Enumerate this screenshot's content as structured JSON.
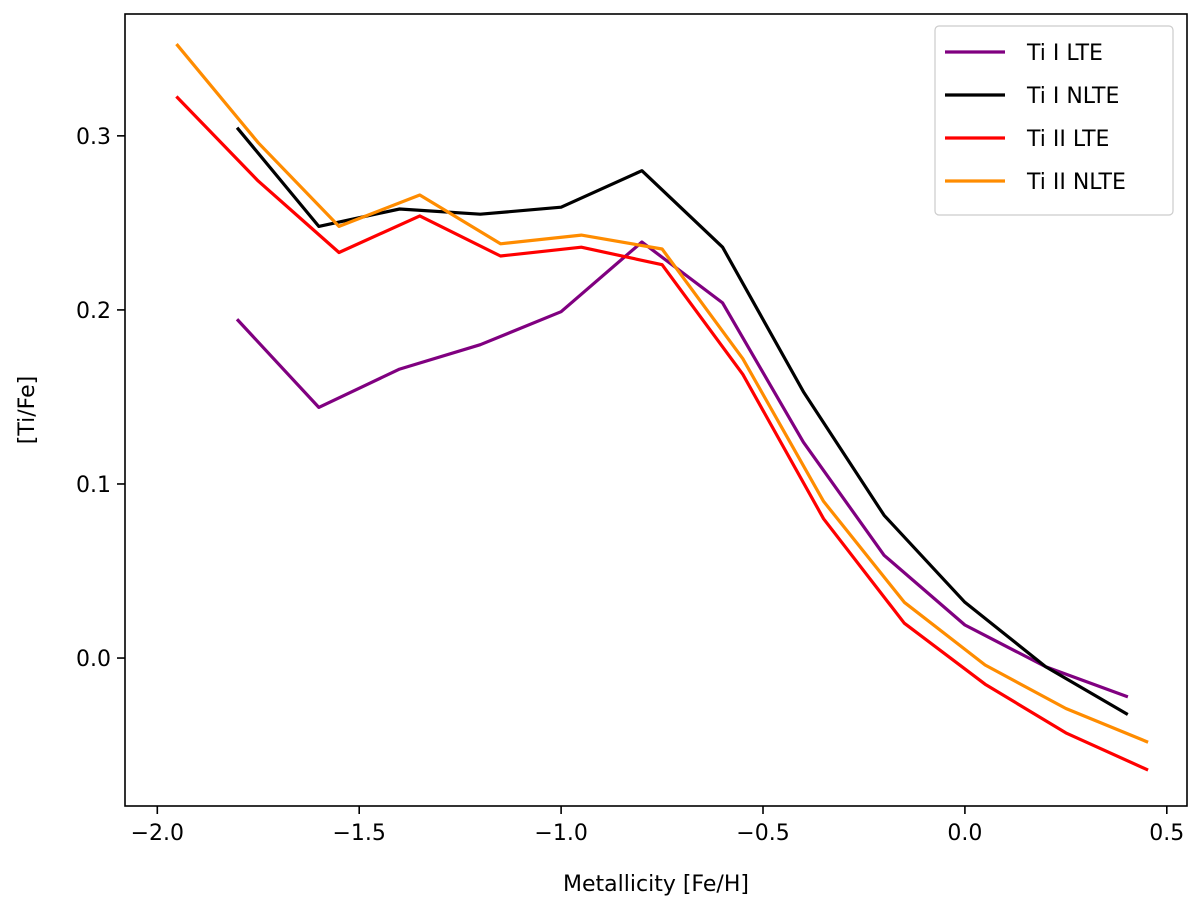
{
  "chart_data": {
    "type": "line",
    "xlabel": "Metallicity [Fe/H]",
    "ylabel": "[Ti/Fe]",
    "xlim": [
      -2.08,
      0.55
    ],
    "ylim": [
      -0.085,
      0.37
    ],
    "xticks": [
      -2.0,
      -1.5,
      -1.0,
      -0.5,
      0.0,
      0.5
    ],
    "xtick_labels": [
      "−2.0",
      "−1.5",
      "−1.0",
      "−0.5",
      "0.0",
      "0.5"
    ],
    "yticks": [
      0.0,
      0.1,
      0.2,
      0.3
    ],
    "ytick_labels": [
      "0.0",
      "0.1",
      "0.2",
      "0.3"
    ],
    "grid": false,
    "legend_position": "top-right",
    "series": [
      {
        "name": "Ti I LTE",
        "color": "#800080",
        "x": [
          -1.8,
          -1.6,
          -1.4,
          -1.2,
          -1.0,
          -0.8,
          -0.6,
          -0.4,
          -0.2,
          0.0,
          0.2,
          0.4
        ],
        "y": [
          0.194,
          0.144,
          0.166,
          0.18,
          0.199,
          0.239,
          0.204,
          0.124,
          0.059,
          0.019,
          -0.005,
          -0.022
        ]
      },
      {
        "name": "Ti I NLTE",
        "color": "#000000",
        "x": [
          -1.8,
          -1.6,
          -1.4,
          -1.2,
          -1.0,
          -0.8,
          -0.6,
          -0.4,
          -0.2,
          0.0,
          0.2,
          0.4
        ],
        "y": [
          0.304,
          0.248,
          0.258,
          0.255,
          0.259,
          0.28,
          0.236,
          0.153,
          0.082,
          0.032,
          -0.005,
          -0.032
        ]
      },
      {
        "name": "Ti II LTE",
        "color": "#ff0000",
        "x": [
          -1.95,
          -1.75,
          -1.55,
          -1.35,
          -1.15,
          -0.95,
          -0.75,
          -0.55,
          -0.35,
          -0.15,
          0.05,
          0.25,
          0.45
        ],
        "y": [
          0.322,
          0.274,
          0.233,
          0.254,
          0.231,
          0.236,
          0.226,
          0.163,
          0.08,
          0.02,
          -0.015,
          -0.043,
          -0.064
        ]
      },
      {
        "name": "Ti II NLTE",
        "color": "#ff8c00",
        "x": [
          -1.95,
          -1.75,
          -1.55,
          -1.35,
          -1.15,
          -0.95,
          -0.75,
          -0.55,
          -0.35,
          -0.15,
          0.05,
          0.25,
          0.45
        ],
        "y": [
          0.352,
          0.296,
          0.248,
          0.266,
          0.238,
          0.243,
          0.235,
          0.172,
          0.09,
          0.032,
          -0.004,
          -0.029,
          -0.048
        ]
      }
    ]
  }
}
